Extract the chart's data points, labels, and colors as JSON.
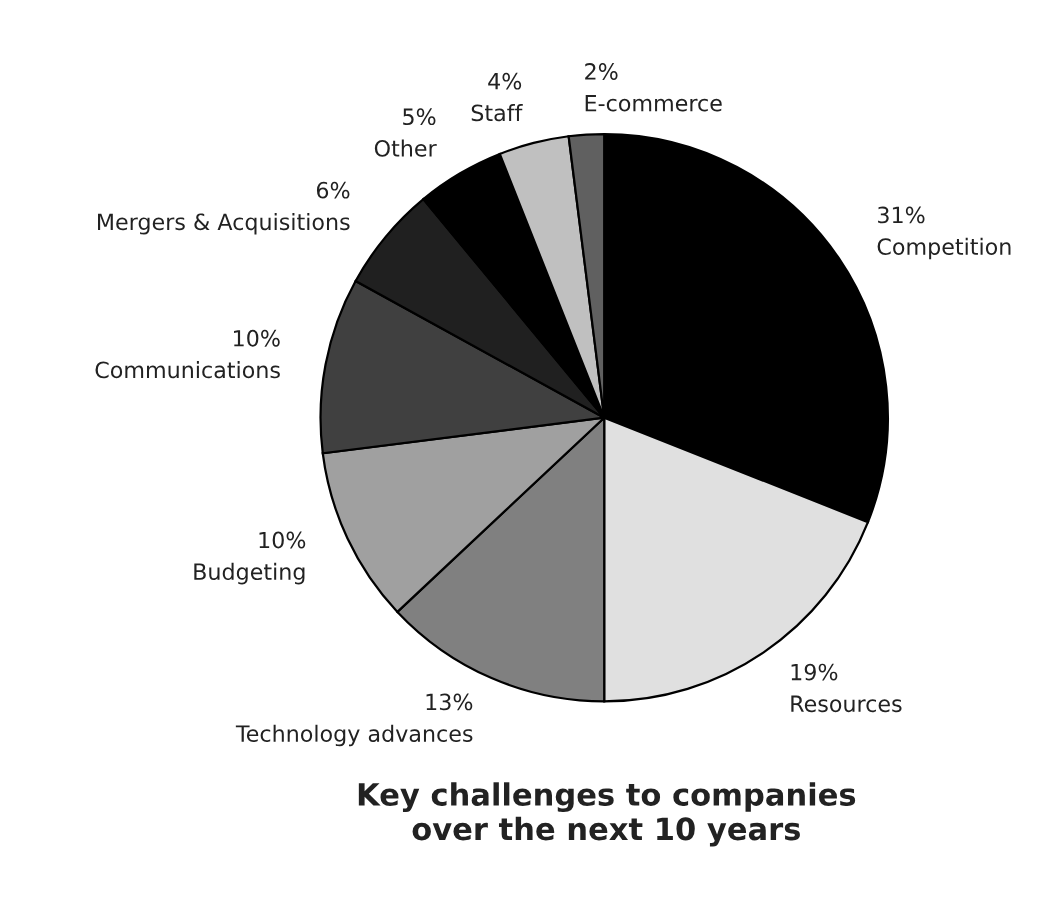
{
  "chart_data": {
    "type": "pie",
    "title": "Key challenges to companies\nover the next 10 years",
    "categories": [
      "Competition",
      "Resources",
      "Technology advances",
      "Budgeting",
      "Communications",
      "Mergers & Acquisitions",
      "Other",
      "Staff",
      "E-commerce"
    ],
    "values": [
      31,
      19,
      13,
      10,
      10,
      6,
      5,
      4,
      2
    ],
    "value_labels": [
      "31%",
      "19%",
      "13%",
      "10%",
      "10%",
      "6%",
      "5%",
      "4%",
      "2%"
    ],
    "colors": [
      "#000000",
      "#e0e0e0",
      "#808080",
      "#a0a0a0",
      "#404040",
      "#202020",
      "#000000",
      "#c0c0c0",
      "#606060"
    ]
  }
}
